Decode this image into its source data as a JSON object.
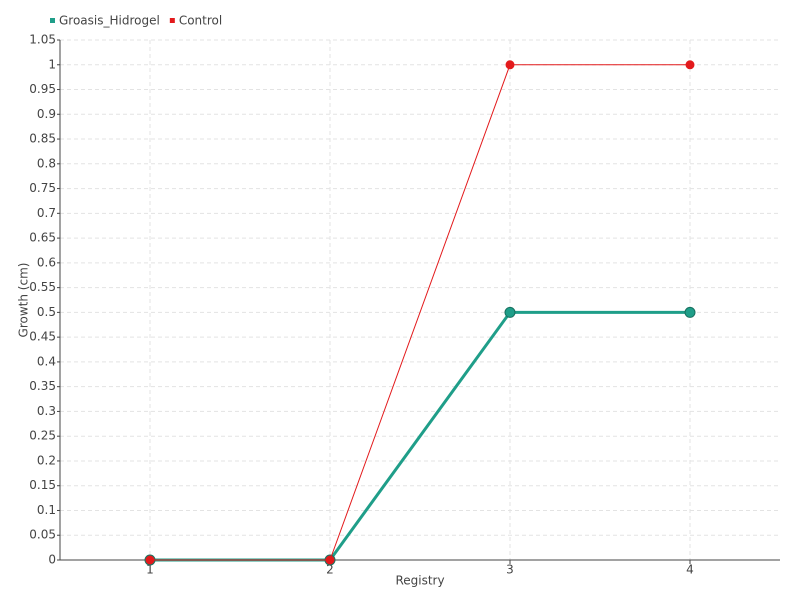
{
  "chart_data": {
    "type": "line",
    "x_label": "Registry",
    "y_label": "Growth (cm)",
    "categories": [
      "1",
      "2",
      "3",
      "4"
    ],
    "series": [
      {
        "name": "Groasis_Hidrogel",
        "color": "#1f9e89",
        "values": [
          0,
          0,
          0.5,
          0.5
        ]
      },
      {
        "name": "Control",
        "color": "#e31a1c",
        "values": [
          0,
          0,
          1,
          1
        ]
      }
    ],
    "ylim": [
      0,
      1.05
    ],
    "yticks": [
      0,
      0.05,
      0.1,
      0.15,
      0.2,
      0.25,
      0.3,
      0.35,
      0.4,
      0.45,
      0.5,
      0.55,
      0.6,
      0.65,
      0.7,
      0.75,
      0.8,
      0.85,
      0.9,
      0.95,
      1,
      1.05
    ],
    "grid": true
  }
}
